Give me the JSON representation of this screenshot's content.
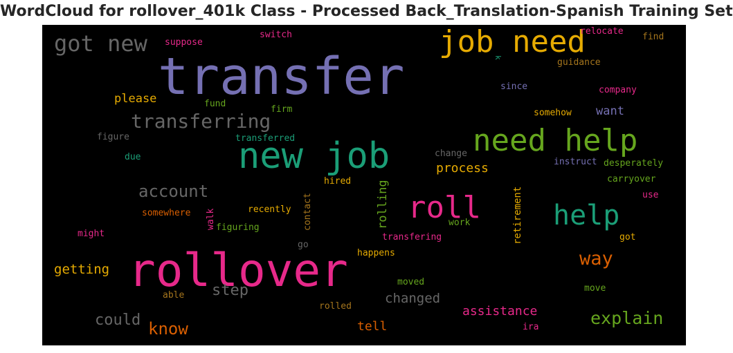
{
  "title": "WordCloud for rollover_401k Class - Processed Back_Translation-Spanish Training Set",
  "colors": {
    "background": "#000000",
    "purple": "#7570b3",
    "green": "#1b9e77",
    "pink": "#e7298a",
    "lime": "#66a61e",
    "gold": "#e6ab02",
    "orange": "#d95f02",
    "gray": "#666666",
    "brown": "#a6761d"
  },
  "words": [
    "transfer",
    "rollover",
    "new job",
    "job need",
    "need help",
    "roll",
    "help",
    "transferring",
    "got new",
    "account",
    "way",
    "explain",
    "know",
    "could",
    "step",
    "changed",
    "getting",
    "assistance",
    "tell",
    "process",
    "please",
    "want",
    "rolling",
    "retirement",
    "contact",
    "walk",
    "switch",
    "suppose",
    "relocate",
    "find",
    "guidance",
    "since",
    "company",
    "somehow",
    "fund",
    "firm",
    "transferred",
    "figure",
    "due",
    "change",
    "instruct",
    "desperately",
    "hired",
    "carryover",
    "use",
    "recently",
    "somewhere",
    "figuring",
    "work",
    "might",
    "got",
    "transfering",
    "go",
    "happens",
    "moved",
    "move",
    "able",
    "rolled",
    "ira",
    "k"
  ]
}
